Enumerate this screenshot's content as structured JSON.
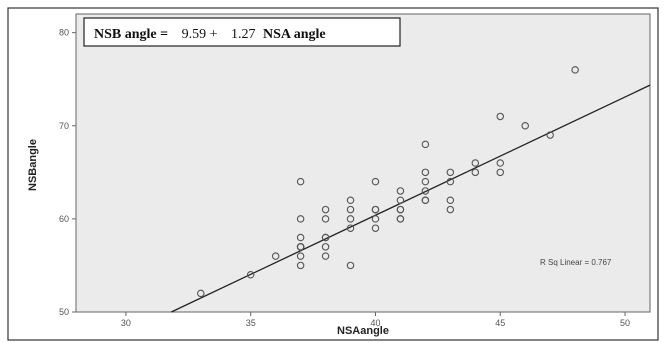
{
  "chart_data": {
    "type": "scatter",
    "title": "",
    "xlabel": "NSAangle",
    "ylabel": "NSBangle",
    "xlim": [
      28,
      51
    ],
    "ylim": [
      50,
      82
    ],
    "x_ticks": [
      "30",
      "35",
      "40",
      "45",
      "50"
    ],
    "y_ticks": [
      "50",
      "60",
      "70",
      "80"
    ],
    "grid": false,
    "equation": {
      "prefix": "NSB angle =",
      "intercept": "9.59",
      "plus": "+",
      "slope": "1.27",
      "suffix": "NSA angle"
    },
    "annotation": "R Sq Linear = 0.767",
    "fit_line": {
      "intercept": 9.59,
      "slope": 1.27
    },
    "x": [
      33,
      35,
      36,
      37,
      37,
      37,
      37,
      37,
      37,
      37,
      37,
      38,
      38,
      38,
      38,
      38,
      38,
      39,
      39,
      39,
      39,
      39,
      40,
      40,
      40,
      40,
      40,
      41,
      41,
      41,
      41,
      41,
      41,
      42,
      42,
      42,
      42,
      42,
      42,
      43,
      43,
      43,
      43,
      44,
      44,
      45,
      45,
      45,
      46,
      47,
      48
    ],
    "y": [
      52,
      54,
      56,
      55,
      56,
      57,
      57,
      58,
      60,
      64,
      57,
      56,
      57,
      58,
      60,
      61,
      58,
      55,
      59,
      60,
      61,
      62,
      59,
      60,
      61,
      61,
      64,
      60,
      61,
      61,
      62,
      63,
      60,
      62,
      63,
      64,
      65,
      68,
      62,
      61,
      62,
      64,
      65,
      65,
      66,
      65,
      66,
      71,
      70,
      69,
      76
    ],
    "colors": {
      "plot_bg": "#ebebeb",
      "marker": "#555555",
      "line": "#222222",
      "frame": "#666666",
      "outer_border": "#333333"
    }
  }
}
